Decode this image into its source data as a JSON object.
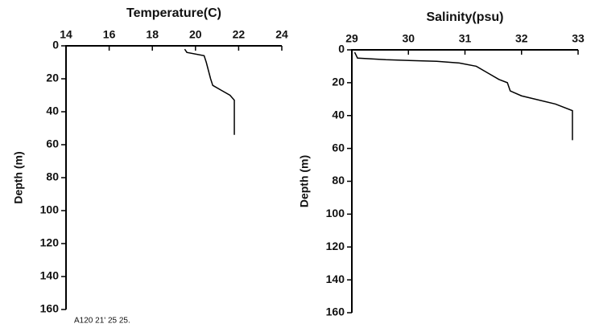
{
  "chart_data": [
    {
      "type": "line",
      "title": "Temperature(C)",
      "y_label": "Depth (m)",
      "xlim": [
        14,
        24
      ],
      "xticks": [
        14,
        16,
        18,
        20,
        22,
        24
      ],
      "ylim": [
        0,
        160
      ],
      "yticks": [
        0,
        20,
        40,
        60,
        80,
        100,
        120,
        140,
        160
      ],
      "y_inverted": true,
      "annotation": "A120 21' 25 25.",
      "series": [
        {
          "name": "Temperature",
          "color": "#000000",
          "x": [
            19.5,
            19.6,
            20.4,
            20.5,
            20.6,
            20.7,
            20.8,
            21.2,
            21.6,
            21.8,
            21.8,
            21.8
          ],
          "values": [
            2,
            4,
            6,
            10,
            15,
            20,
            24,
            27,
            30,
            33,
            40,
            54
          ]
        }
      ]
    },
    {
      "type": "line",
      "title": "Salinity(psu)",
      "y_label": "Depth (m)",
      "xlim": [
        29,
        33
      ],
      "xticks": [
        29,
        30,
        31,
        32,
        33
      ],
      "ylim": [
        0,
        160
      ],
      "yticks": [
        0,
        20,
        40,
        60,
        80,
        100,
        120,
        140,
        160
      ],
      "y_inverted": true,
      "series": [
        {
          "name": "Salinity",
          "color": "#000000",
          "x": [
            29.05,
            29.1,
            29.6,
            30.5,
            30.9,
            31.2,
            31.4,
            31.6,
            31.75,
            31.8,
            32.0,
            32.6,
            32.9,
            32.9,
            32.9
          ],
          "values": [
            1.5,
            5,
            6,
            7,
            8,
            10,
            14,
            18,
            20,
            25,
            28,
            33,
            37,
            45,
            55
          ]
        }
      ]
    }
  ]
}
